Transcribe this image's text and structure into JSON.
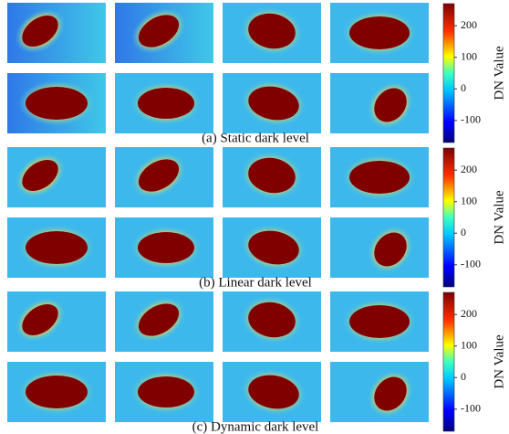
{
  "panels": [
    {
      "caption": "(a) Static dark level",
      "colorbar": {
        "label": "DN Value",
        "lim": [
          -170,
          270
        ],
        "ticks": [
          -100,
          0,
          100,
          200
        ]
      }
    },
    {
      "caption": "(b) Linear dark level",
      "colorbar": {
        "label": "DN Value",
        "lim": [
          -170,
          270
        ],
        "ticks": [
          -100,
          0,
          100,
          200
        ]
      }
    },
    {
      "caption": "(c) Dynamic dark level",
      "colorbar": {
        "label": "DN Value",
        "lim": [
          -170,
          270
        ],
        "ticks": [
          -100,
          0,
          100,
          200
        ]
      }
    }
  ]
}
